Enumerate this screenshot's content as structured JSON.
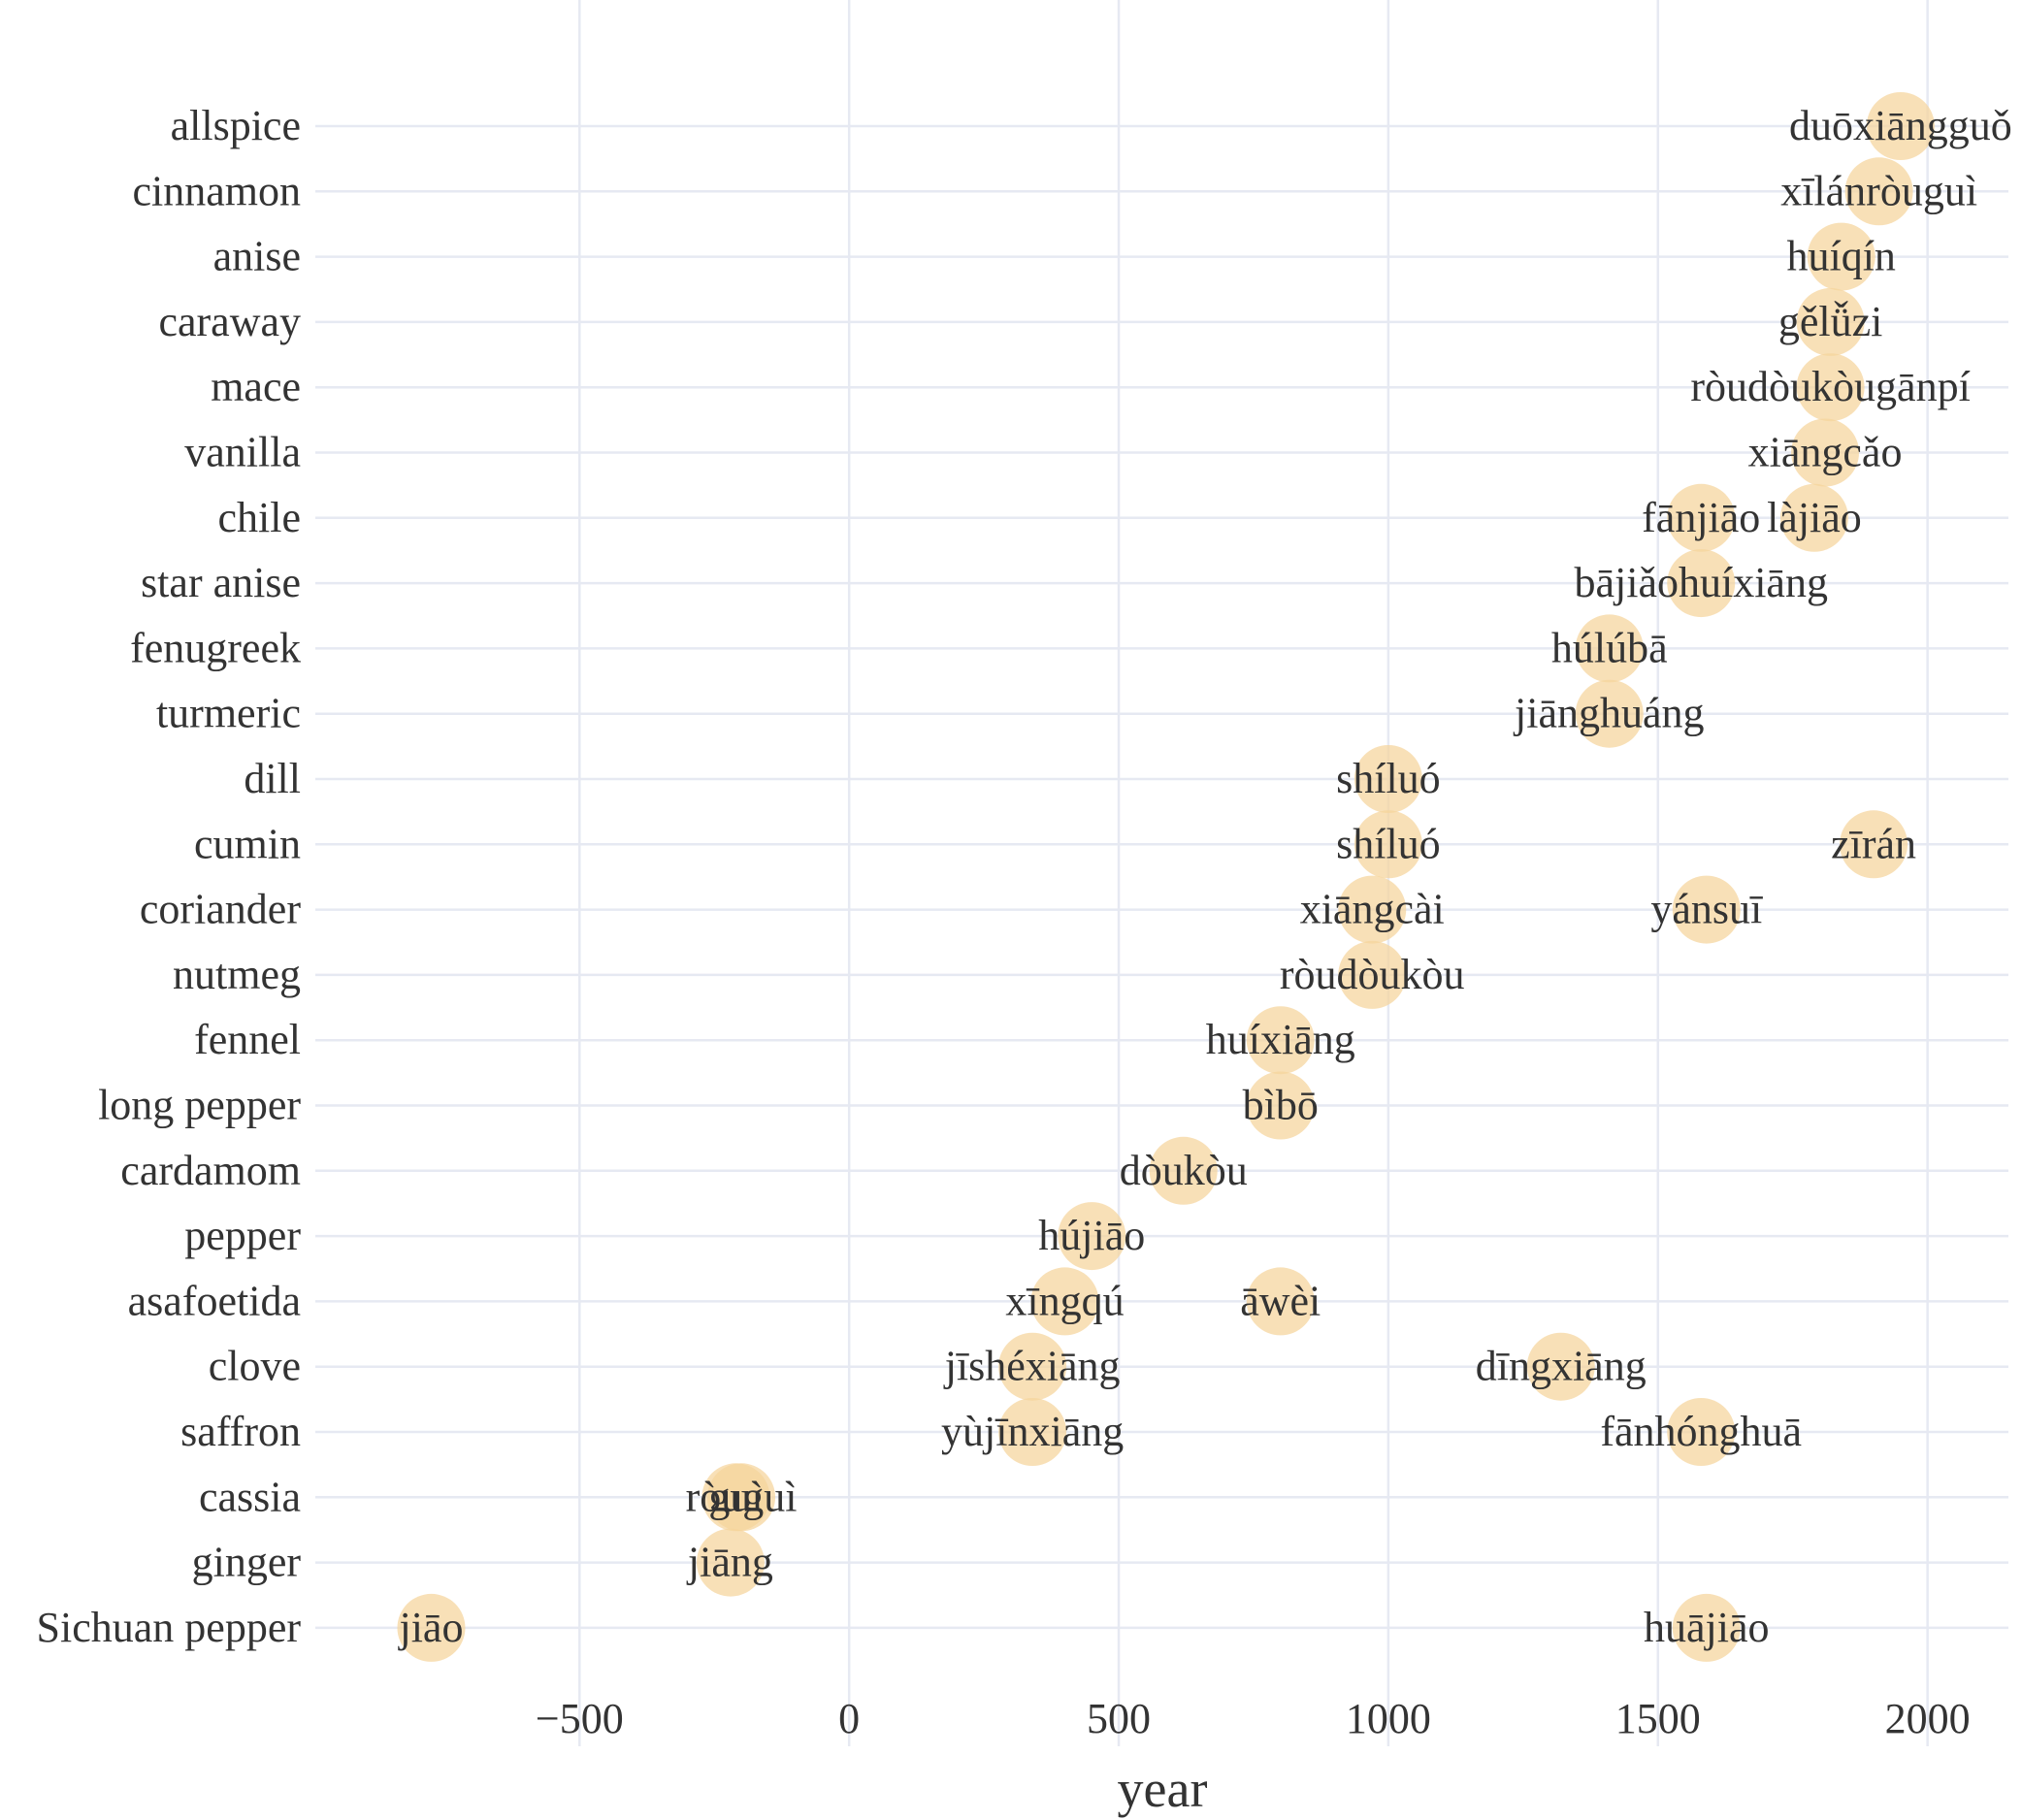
{
  "chart_data": {
    "type": "scatter",
    "xlabel": "year",
    "ylabel": "",
    "xlim": [
      -990,
      2150
    ],
    "x_ticks": [
      -500,
      0,
      500,
      1000,
      1500,
      2000
    ],
    "x_tick_labels": [
      "−500",
      "0",
      "500",
      "1000",
      "1500",
      "2000"
    ],
    "grid": true,
    "point_color": "#f5d49b",
    "categories": [
      "allspice",
      "cinnamon",
      "anise",
      "caraway",
      "mace",
      "vanilla",
      "chile",
      "star anise",
      "fenugreek",
      "turmeric",
      "dill",
      "cumin",
      "coriander",
      "nutmeg",
      "fennel",
      "long pepper",
      "cardamom",
      "pepper",
      "asafoetida",
      "clove",
      "saffron",
      "cassia",
      "ginger",
      "Sichuan pepper"
    ],
    "points": [
      {
        "spice": "allspice",
        "year": 1950,
        "label": "duōxiāngguǒ"
      },
      {
        "spice": "cinnamon",
        "year": 1910,
        "label": "xīlánròuguì"
      },
      {
        "spice": "anise",
        "year": 1840,
        "label": "huíqín"
      },
      {
        "spice": "caraway",
        "year": 1820,
        "label": "gělǚzi"
      },
      {
        "spice": "mace",
        "year": 1820,
        "label": "ròudòukòugānpí"
      },
      {
        "spice": "vanilla",
        "year": 1810,
        "label": "xiāngcǎo"
      },
      {
        "spice": "chile",
        "year": 1580,
        "label": "fānjiāo"
      },
      {
        "spice": "chile",
        "year": 1790,
        "label": "làjiāo"
      },
      {
        "spice": "star anise",
        "year": 1580,
        "label": "bājiǎohuíxiāng"
      },
      {
        "spice": "fenugreek",
        "year": 1410,
        "label": "húlúbā"
      },
      {
        "spice": "turmeric",
        "year": 1410,
        "label": "jiānghuáng"
      },
      {
        "spice": "dill",
        "year": 1000,
        "label": "shíluó"
      },
      {
        "spice": "cumin",
        "year": 1000,
        "label": "shíluó"
      },
      {
        "spice": "cumin",
        "year": 1900,
        "label": "zīrán"
      },
      {
        "spice": "coriander",
        "year": 970,
        "label": "xiāngcài"
      },
      {
        "spice": "coriander",
        "year": 1590,
        "label": "yánsuī"
      },
      {
        "spice": "nutmeg",
        "year": 970,
        "label": "ròudòukòu"
      },
      {
        "spice": "fennel",
        "year": 800,
        "label": "huíxiāng"
      },
      {
        "spice": "long pepper",
        "year": 800,
        "label": "bìbō"
      },
      {
        "spice": "cardamom",
        "year": 620,
        "label": "dòukòu"
      },
      {
        "spice": "pepper",
        "year": 450,
        "label": "hújiāo"
      },
      {
        "spice": "asafoetida",
        "year": 400,
        "label": "xīngqú"
      },
      {
        "spice": "asafoetida",
        "year": 800,
        "label": "āwèi"
      },
      {
        "spice": "clove",
        "year": 340,
        "label": "jīshéxiāng"
      },
      {
        "spice": "clove",
        "year": 1320,
        "label": "dīngxiāng"
      },
      {
        "spice": "saffron",
        "year": 340,
        "label": "yùjīnxiāng"
      },
      {
        "spice": "saffron",
        "year": 1580,
        "label": "fānhónghuā"
      },
      {
        "spice": "cassia",
        "year": -210,
        "label": "guì"
      },
      {
        "spice": "cassia",
        "year": -200,
        "label": "ròuguì"
      },
      {
        "spice": "ginger",
        "year": -220,
        "label": "jiāng"
      },
      {
        "spice": "Sichuan pepper",
        "year": -775,
        "label": "jiāo"
      },
      {
        "spice": "Sichuan pepper",
        "year": 1590,
        "label": "huājiāo"
      }
    ]
  }
}
